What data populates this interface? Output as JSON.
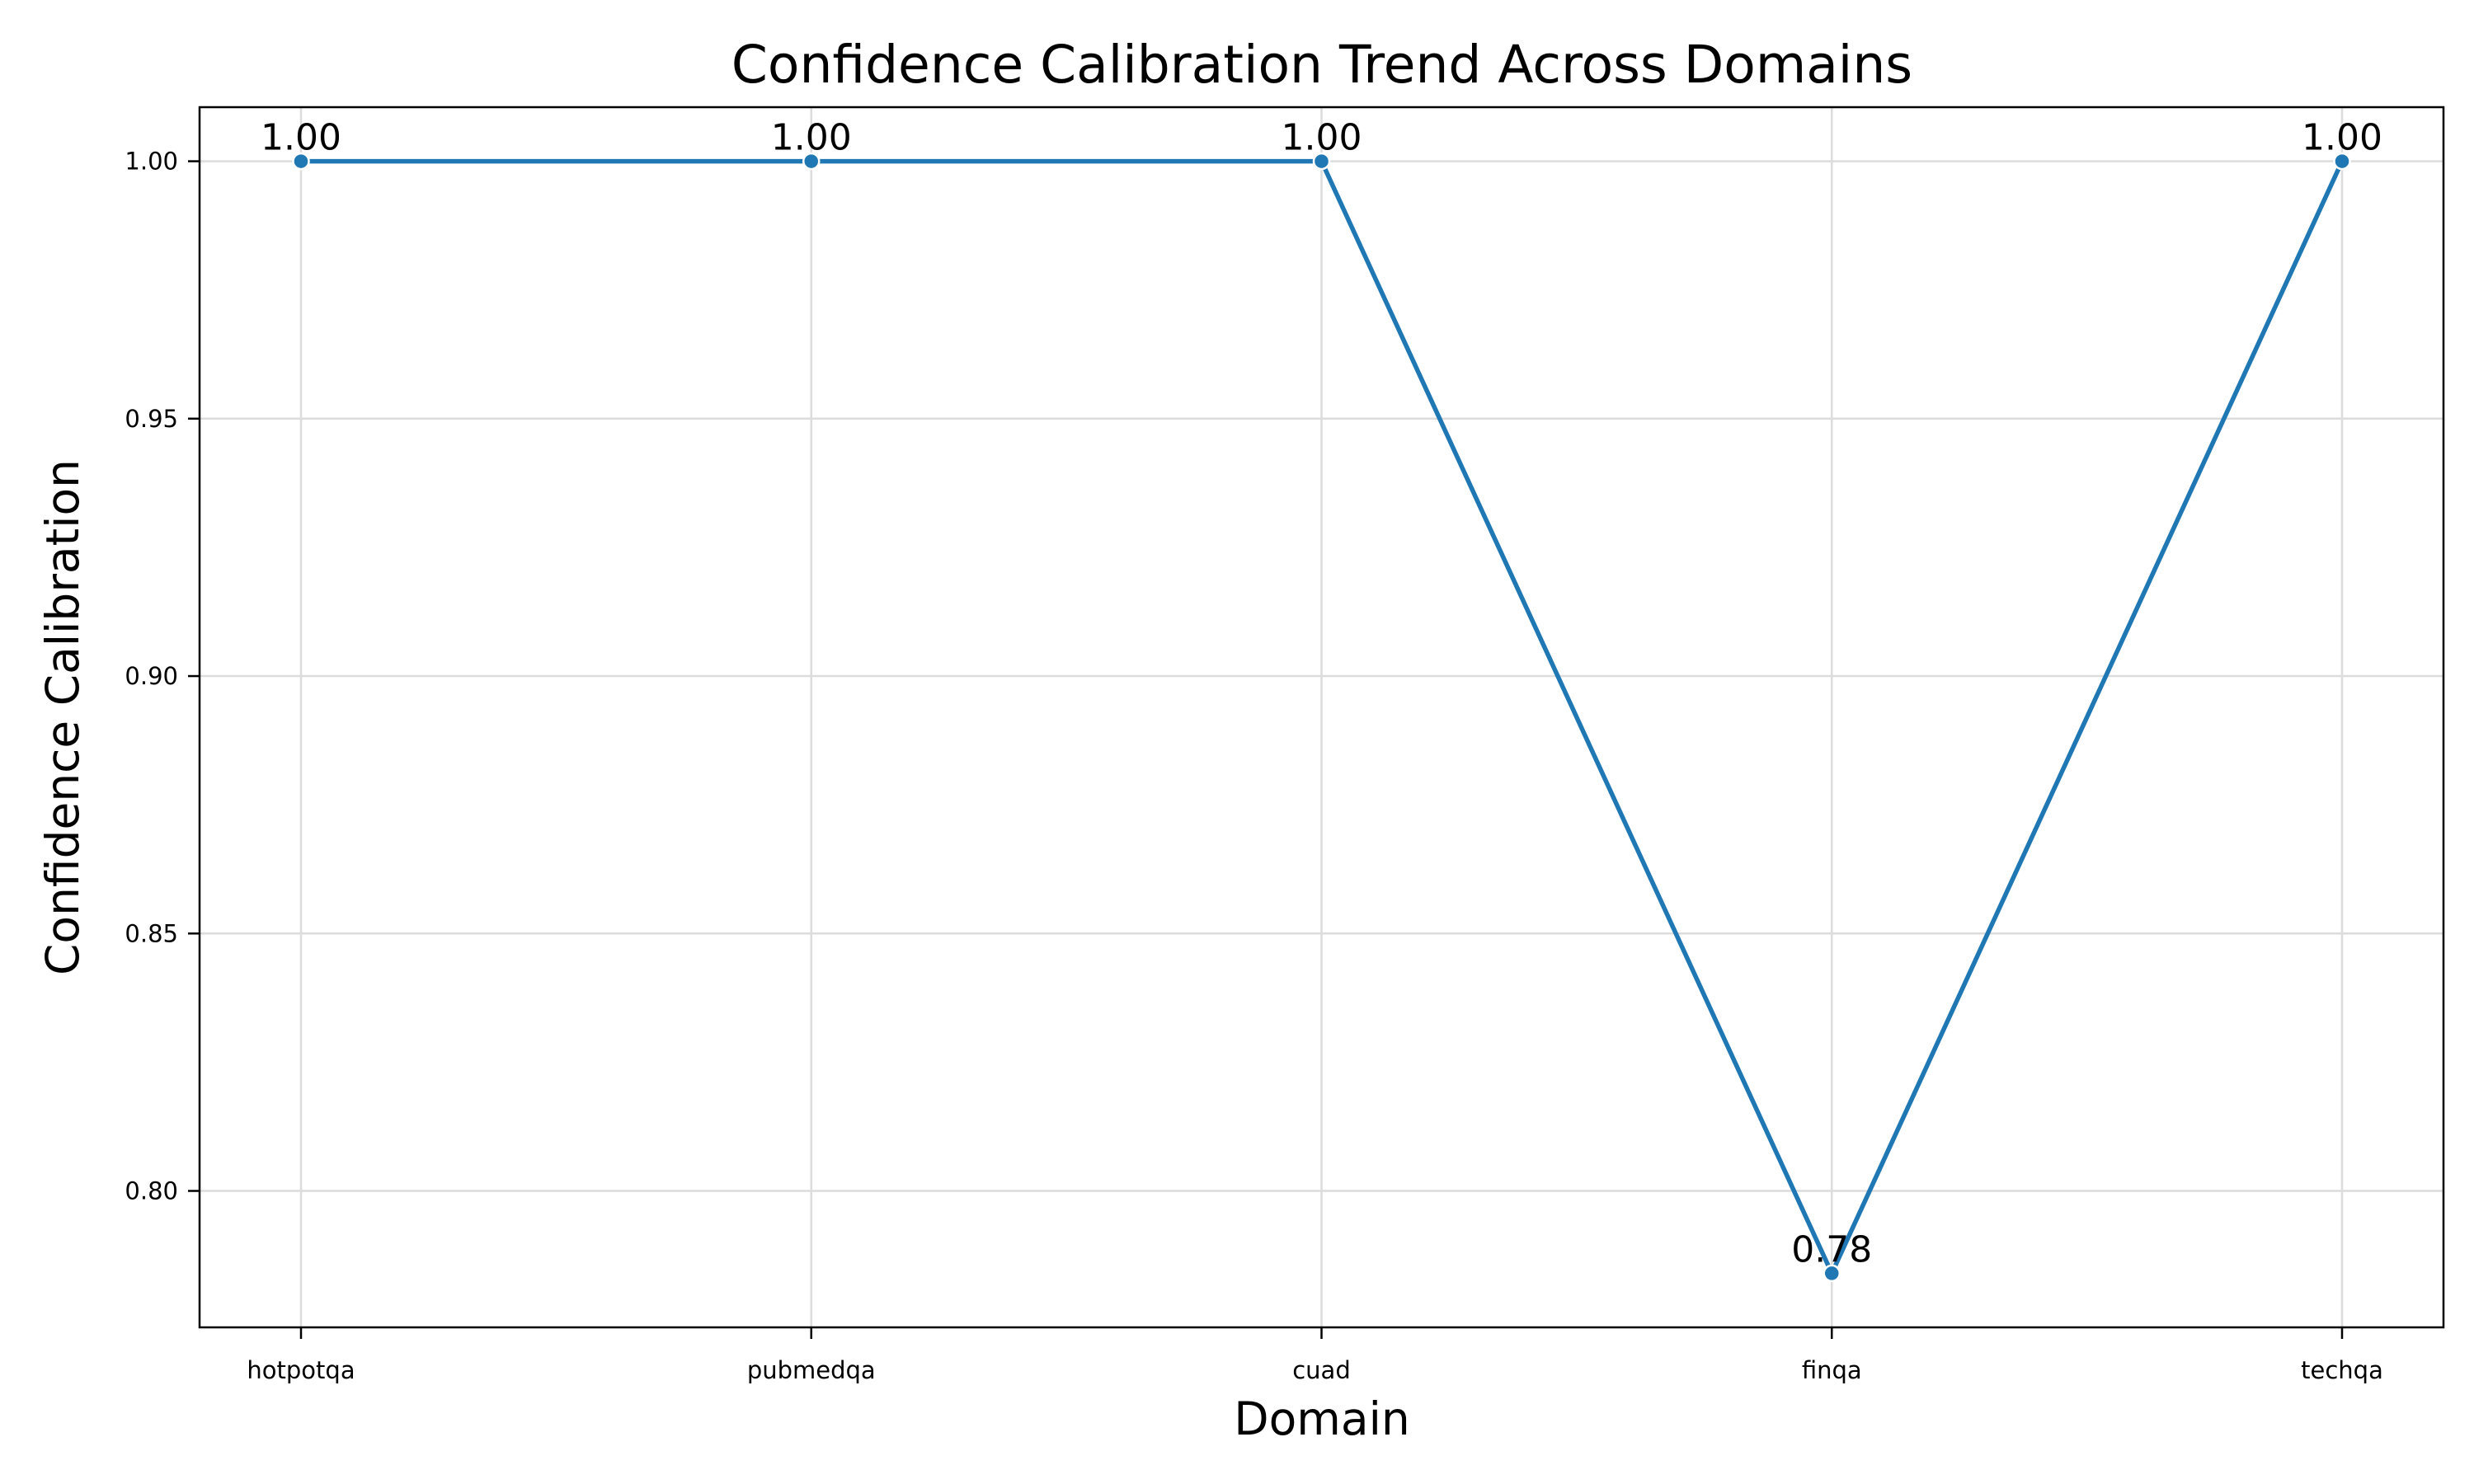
{
  "chart_data": {
    "type": "line",
    "title": "Confidence Calibration Trend Across Domains",
    "xlabel": "Domain",
    "ylabel": "Confidence Calibration",
    "categories": [
      "hotpotqa",
      "pubmedqa",
      "cuad",
      "finqa",
      "techqa"
    ],
    "series": [
      {
        "values": [
          1.0,
          1.0,
          1.0,
          0.784,
          1.0
        ],
        "color": "#1f77b4",
        "marker": "circle"
      }
    ],
    "data_labels": [
      "1.00",
      "1.00",
      "1.00",
      "0.78",
      "1.00"
    ],
    "ylim": [
      0.7735,
      1.0105
    ],
    "yticks": [
      0.8,
      0.85,
      0.9,
      0.95,
      1.0
    ],
    "ytick_labels": [
      "0.80",
      "0.85",
      "0.90",
      "0.95",
      "1.00"
    ],
    "grid": true,
    "legend": "none"
  }
}
